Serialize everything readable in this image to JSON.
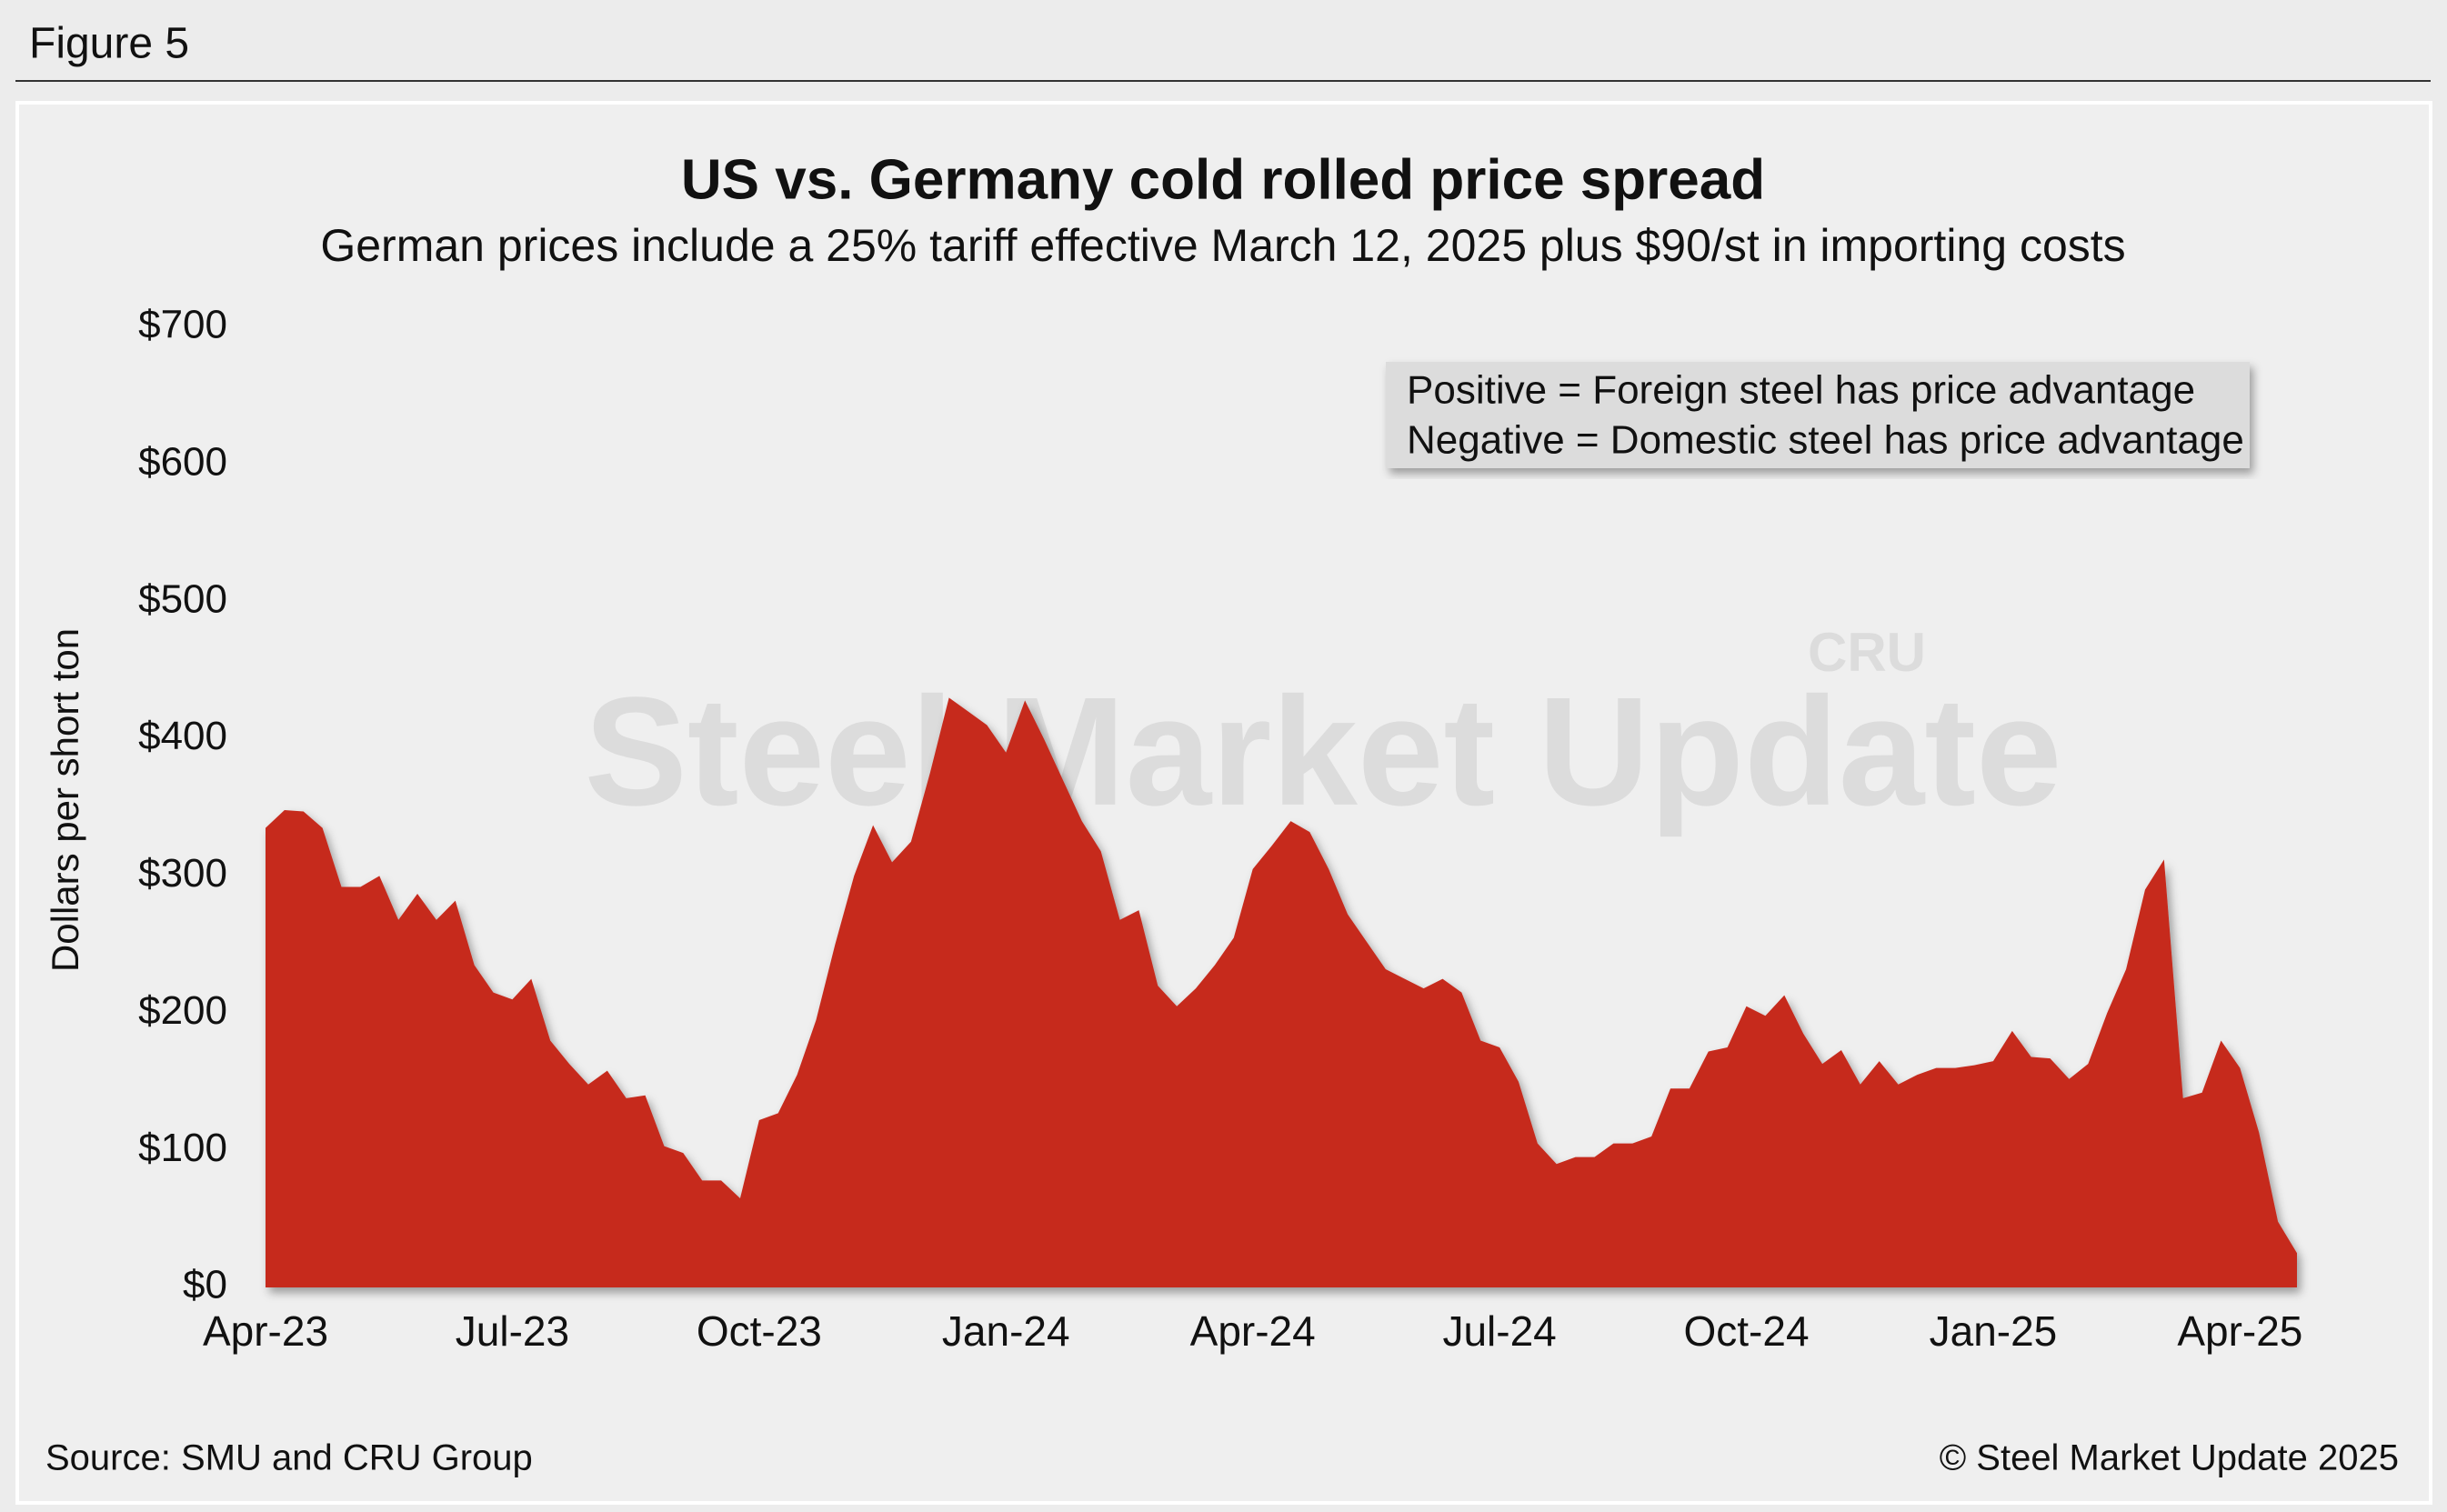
{
  "figure_label": "Figure 5",
  "chart_data": {
    "type": "area",
    "title": "US vs. Germany cold rolled price spread",
    "subtitle": "German prices include a 25% tariff effective March 12, 2025 plus $90/st in importing costs",
    "y_label": "Dollars per short ton",
    "annotation": [
      "Positive = Foreign steel has price advantage",
      "Negative = Domestic steel has price advantage"
    ],
    "watermark": [
      "Steel Market Update",
      "CRU"
    ],
    "source": "Source: SMU and CRU Group",
    "copyright": "© Steel Market Update 2025",
    "color": "#c62a1f",
    "categories": [
      "Apr-23",
      null,
      null,
      null,
      null,
      null,
      null,
      null,
      null,
      null,
      null,
      null,
      null,
      "Jul-23",
      null,
      null,
      null,
      null,
      null,
      null,
      null,
      null,
      null,
      null,
      null,
      null,
      "Oct-23",
      null,
      null,
      null,
      null,
      null,
      null,
      null,
      null,
      null,
      null,
      null,
      null,
      "Jan-24",
      null,
      null,
      null,
      null,
      null,
      null,
      null,
      null,
      null,
      null,
      null,
      null,
      "Apr-24",
      null,
      null,
      null,
      null,
      null,
      null,
      null,
      null,
      null,
      null,
      null,
      null,
      "Jul-24",
      null,
      null,
      null,
      null,
      null,
      null,
      null,
      null,
      null,
      null,
      null,
      null,
      "Oct-24",
      null,
      null,
      null,
      null,
      null,
      null,
      null,
      null,
      null,
      null,
      null,
      null,
      "Jan-25",
      null,
      null,
      null,
      null,
      null,
      null,
      null,
      null,
      null,
      null,
      null,
      null,
      "Apr-25",
      null,
      null,
      null
    ],
    "values": [
      335,
      348,
      347,
      335,
      292,
      292,
      300,
      268,
      287,
      268,
      282,
      235,
      215,
      210,
      225,
      180,
      163,
      148,
      158,
      138,
      140,
      103,
      98,
      78,
      78,
      65,
      122,
      127,
      155,
      195,
      250,
      300,
      337,
      310,
      325,
      375,
      430,
      420,
      410,
      390,
      428,
      400,
      370,
      340,
      318,
      268,
      275,
      220,
      205,
      218,
      235,
      255,
      305,
      322,
      340,
      332,
      305,
      272,
      252,
      232,
      225,
      218,
      225,
      215,
      180,
      175,
      150,
      105,
      90,
      95,
      95,
      105,
      105,
      110,
      145,
      145,
      172,
      175,
      205,
      198,
      213,
      185,
      163,
      173,
      148,
      165,
      148,
      155,
      160,
      160,
      162,
      165,
      187,
      168,
      167,
      152,
      163,
      200,
      232,
      290,
      312,
      138,
      142,
      180,
      160,
      113,
      48,
      25
    ],
    "ylim": [
      0,
      700
    ],
    "yticks": [
      {
        "value": 0,
        "label": "$0"
      },
      {
        "value": 100,
        "label": "$100"
      },
      {
        "value": 200,
        "label": "$200"
      },
      {
        "value": 300,
        "label": "$300"
      },
      {
        "value": 400,
        "label": "$400"
      },
      {
        "value": 500,
        "label": "$500"
      },
      {
        "value": 600,
        "label": "$600"
      },
      {
        "value": 700,
        "label": "$700"
      }
    ],
    "grid": false
  }
}
